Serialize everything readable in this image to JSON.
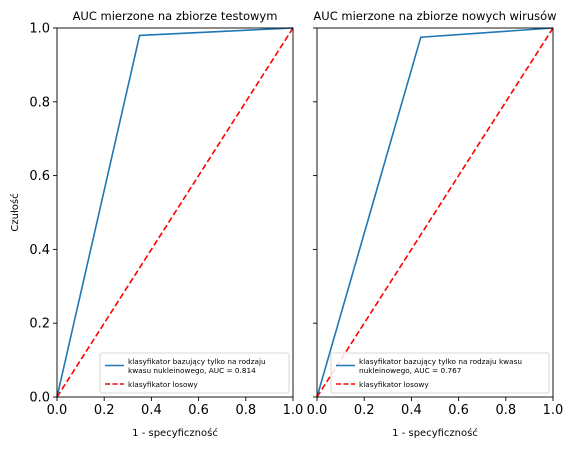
{
  "chart_data": [
    {
      "type": "line",
      "title": "AUC mierzone na zbiorze testowym",
      "xlabel": "1 - specyficzność",
      "ylabel": "Czułość",
      "xlim": [
        0,
        1
      ],
      "ylim": [
        0,
        1
      ],
      "xticks": [
        "0.0",
        "0.2",
        "0.4",
        "0.6",
        "0.8",
        "1.0"
      ],
      "yticks": [
        "0.0",
        "0.2",
        "0.4",
        "0.6",
        "0.8",
        "1.0"
      ],
      "grid": false,
      "legend_position": "bottom-right",
      "series": [
        {
          "name": "klasyfikator bazujący tylko na rodzaju kwasu nukleinowego, AUC = 0.814",
          "legend_lines": [
            "klasyfikator bazujący tylko na rodzaju",
            "kwasu nukleinowego, AUC = 0.814"
          ],
          "color": "#1f77b4",
          "style": "solid",
          "x": [
            0,
            0.35,
            1
          ],
          "y": [
            0,
            0.98,
            1
          ]
        },
        {
          "name": "klasyfikator losowy",
          "legend_lines": [
            "klasyfikator losowy"
          ],
          "color": "#ff0000",
          "style": "dashed",
          "x": [
            0,
            1
          ],
          "y": [
            0,
            1
          ]
        }
      ]
    },
    {
      "type": "line",
      "title": "AUC mierzone na zbiorze nowych wirusów",
      "xlabel": "1 - specyficzność",
      "ylabel": "",
      "xlim": [
        0,
        1
      ],
      "ylim": [
        0,
        1
      ],
      "xticks": [
        "0.0",
        "0.2",
        "0.4",
        "0.6",
        "0.8",
        "1.0"
      ],
      "yticks": [],
      "grid": false,
      "legend_position": "bottom-right",
      "series": [
        {
          "name": "klasyfikator bazujący tylko na rodzaju kwasu nukleinowego, AUC = 0.767",
          "legend_lines": [
            "klasyfikator bazujący tylko na rodzaju kwasu",
            "nukleinowego, AUC = 0.767"
          ],
          "color": "#1f77b4",
          "style": "solid",
          "x": [
            0,
            0.44,
            1
          ],
          "y": [
            0,
            0.975,
            1
          ]
        },
        {
          "name": "klasyfikator losowy",
          "legend_lines": [
            "klasyfikator losowy"
          ],
          "color": "#ff0000",
          "style": "dashed",
          "x": [
            0,
            1
          ],
          "y": [
            0,
            1
          ]
        }
      ]
    }
  ]
}
